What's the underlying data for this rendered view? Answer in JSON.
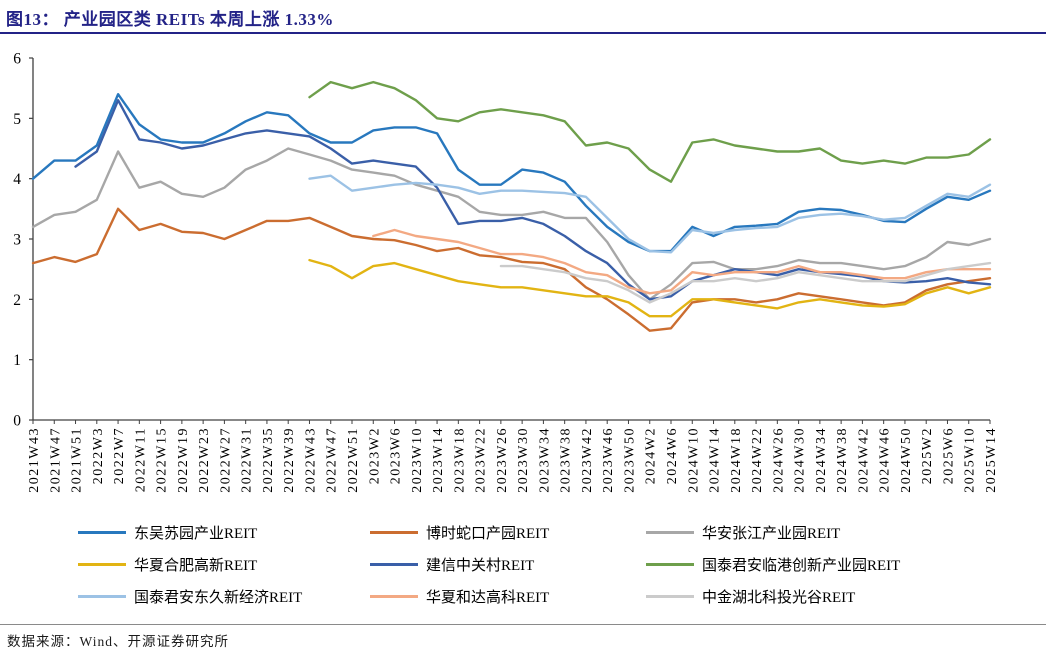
{
  "title": "图13： 产业园区类 REITs 本周上涨 1.33%",
  "source": "数据来源：Wind、开源证券研究所",
  "chart_data": {
    "type": "line",
    "title": "产业园区类 REITs 本周上涨 1.33%",
    "xlabel": "",
    "ylabel": "",
    "ylim": [
      0,
      6
    ],
    "y_ticks": [
      0,
      1,
      2,
      3,
      4,
      5,
      6
    ],
    "grid": false,
    "legend_position": "bottom",
    "x_tick_labels": [
      "2021W43",
      "2021W47",
      "2021W51",
      "2022W3",
      "2022W7",
      "2022W11",
      "2022W15",
      "2022W19",
      "2022W23",
      "2022W27",
      "2022W31",
      "2022W35",
      "2022W39",
      "2022W43",
      "2022W47",
      "2022W51",
      "2023W2",
      "2023W6",
      "2023W10",
      "2023W14",
      "2023W18",
      "2023W22",
      "2023W26",
      "2023W30",
      "2023W34",
      "2023W38",
      "2023W42",
      "2023W46",
      "2023W50",
      "2024W2",
      "2024W6",
      "2024W10",
      "2024W14",
      "2024W18",
      "2024W22",
      "2024W26",
      "2024W30",
      "2024W34",
      "2024W38",
      "2024W42",
      "2024W46",
      "2024W50",
      "2025W2",
      "2025W6",
      "2025W10",
      "2025W14"
    ],
    "series": [
      {
        "name": "东吴苏园产业REIT",
        "color": "#2878BE",
        "start_index": 0,
        "values": [
          4.0,
          4.3,
          4.3,
          4.55,
          5.4,
          4.9,
          4.65,
          4.6,
          4.6,
          4.75,
          4.95,
          5.1,
          5.05,
          4.75,
          4.6,
          4.6,
          4.8,
          4.85,
          4.85,
          4.75,
          4.15,
          3.9,
          3.9,
          4.15,
          4.1,
          3.95,
          3.55,
          3.2,
          2.95,
          2.8,
          2.8,
          3.2,
          3.05,
          3.2,
          3.22,
          3.25,
          3.45,
          3.5,
          3.48,
          3.4,
          3.3,
          3.28,
          3.5,
          3.7,
          3.65,
          3.8
        ]
      },
      {
        "name": "博时蛇口产园REIT",
        "color": "#CB6D30",
        "start_index": 0,
        "values": [
          2.6,
          2.7,
          2.62,
          2.75,
          3.5,
          3.15,
          3.25,
          3.12,
          3.1,
          3.0,
          3.15,
          3.3,
          3.3,
          3.35,
          3.2,
          3.05,
          3.0,
          2.98,
          2.9,
          2.8,
          2.85,
          2.73,
          2.7,
          2.62,
          2.6,
          2.5,
          2.2,
          2.0,
          1.75,
          1.48,
          1.52,
          1.95,
          2.0,
          2.0,
          1.95,
          2.0,
          2.1,
          2.05,
          2.0,
          1.95,
          1.9,
          1.95,
          2.15,
          2.25,
          2.3,
          2.35
        ]
      },
      {
        "name": "华安张江产业园REIT",
        "color": "#A7A7A7",
        "start_index": 0,
        "values": [
          3.2,
          3.4,
          3.45,
          3.65,
          4.45,
          3.85,
          3.95,
          3.75,
          3.7,
          3.85,
          4.15,
          4.3,
          4.5,
          4.4,
          4.3,
          4.15,
          4.1,
          4.05,
          3.9,
          3.8,
          3.7,
          3.45,
          3.4,
          3.4,
          3.45,
          3.35,
          3.35,
          2.95,
          2.4,
          2.0,
          2.25,
          2.6,
          2.62,
          2.5,
          2.5,
          2.55,
          2.65,
          2.6,
          2.6,
          2.55,
          2.5,
          2.55,
          2.7,
          2.95,
          2.9,
          3.0
        ]
      },
      {
        "name": "华夏合肥高新REIT",
        "color": "#E2B413",
        "start_index": 13,
        "values": [
          2.65,
          2.55,
          2.35,
          2.55,
          2.6,
          2.5,
          2.4,
          2.3,
          2.25,
          2.2,
          2.2,
          2.15,
          2.1,
          2.05,
          2.05,
          1.95,
          1.72,
          1.72,
          2.0,
          2.0,
          1.95,
          1.9,
          1.85,
          1.95,
          2.0,
          1.95,
          1.9,
          1.88,
          1.92,
          2.1,
          2.2,
          2.1,
          2.2
        ]
      },
      {
        "name": "建信中关村REIT",
        "color": "#3A5FA8",
        "start_index": 2,
        "values": [
          4.2,
          4.45,
          5.3,
          4.65,
          4.6,
          4.5,
          4.55,
          4.65,
          4.75,
          4.8,
          4.75,
          4.7,
          4.5,
          4.25,
          4.3,
          4.25,
          4.2,
          3.85,
          3.25,
          3.3,
          3.3,
          3.35,
          3.25,
          3.05,
          2.8,
          2.6,
          2.25,
          2.0,
          2.05,
          2.3,
          2.4,
          2.5,
          2.45,
          2.4,
          2.5,
          2.45,
          2.42,
          2.38,
          2.3,
          2.28,
          2.3,
          2.35,
          2.28,
          2.25
        ]
      },
      {
        "name": "国泰君安临港创新产业园REIT",
        "color": "#6E9F4B",
        "start_index": 13,
        "values": [
          5.35,
          5.6,
          5.5,
          5.6,
          5.5,
          5.3,
          5.0,
          4.95,
          5.1,
          5.15,
          5.1,
          5.05,
          4.95,
          4.55,
          4.6,
          4.5,
          4.15,
          3.95,
          4.6,
          4.65,
          4.55,
          4.5,
          4.45,
          4.45,
          4.5,
          4.3,
          4.25,
          4.3,
          4.25,
          4.35,
          4.35,
          4.4,
          4.65
        ]
      },
      {
        "name": "国泰君安东久新经济REIT",
        "color": "#9CC2E5",
        "start_index": 13,
        "values": [
          4.0,
          4.05,
          3.8,
          3.85,
          3.9,
          3.93,
          3.9,
          3.85,
          3.75,
          3.8,
          3.8,
          3.78,
          3.76,
          3.7,
          3.35,
          3.0,
          2.8,
          2.78,
          3.15,
          3.1,
          3.15,
          3.18,
          3.2,
          3.35,
          3.4,
          3.42,
          3.38,
          3.32,
          3.35,
          3.55,
          3.75,
          3.7,
          3.9
        ]
      },
      {
        "name": "华夏和达高科REIT",
        "color": "#F3A983",
        "start_index": 16,
        "values": [
          3.05,
          3.15,
          3.05,
          3.0,
          2.95,
          2.85,
          2.75,
          2.75,
          2.7,
          2.6,
          2.45,
          2.4,
          2.2,
          2.1,
          2.15,
          2.45,
          2.4,
          2.45,
          2.45,
          2.45,
          2.55,
          2.45,
          2.45,
          2.4,
          2.35,
          2.35,
          2.45,
          2.5,
          2.5,
          2.5
        ]
      },
      {
        "name": "中金湖北科投光谷REIT",
        "color": "#CBCBCB",
        "start_index": 22,
        "values": [
          2.55,
          2.55,
          2.5,
          2.45,
          2.35,
          2.3,
          2.15,
          1.95,
          2.1,
          2.3,
          2.3,
          2.35,
          2.3,
          2.35,
          2.45,
          2.4,
          2.35,
          2.3,
          2.3,
          2.3,
          2.4,
          2.5,
          2.55,
          2.6
        ]
      }
    ]
  }
}
